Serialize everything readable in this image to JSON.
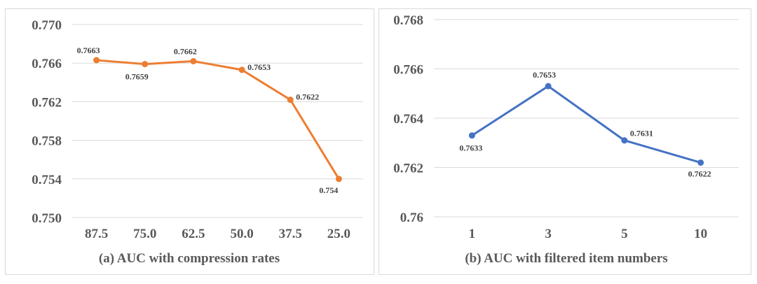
{
  "chart_data": [
    {
      "type": "line",
      "title": "(a) AUC with compression rates",
      "xlabel": "",
      "ylabel": "",
      "categories": [
        "87.5",
        "75.0",
        "62.5",
        "50.0",
        "37.5",
        "25.0"
      ],
      "series": [
        {
          "values": [
            0.7663,
            0.7659,
            0.7662,
            0.7653,
            0.7622,
            0.754
          ],
          "labels": [
            "0.7663",
            "0.7659",
            "0.7662",
            "0.7653",
            "0.7622",
            "0.754"
          ]
        }
      ],
      "yticks": [
        "0.750",
        "0.754",
        "0.758",
        "0.762",
        "0.766",
        "0.770"
      ],
      "ylim": [
        0.75,
        0.77
      ],
      "grid": true,
      "color": "#ED7D31"
    },
    {
      "type": "line",
      "title": "(b) AUC with filtered item numbers",
      "xlabel": "",
      "ylabel": "",
      "categories": [
        "1",
        "3",
        "5",
        "10"
      ],
      "series": [
        {
          "values": [
            0.7633,
            0.7653,
            0.7631,
            0.7622
          ],
          "labels": [
            "0.7633",
            "0.7653",
            "0.7631",
            "0.7622"
          ]
        }
      ],
      "yticks": [
        "0.76",
        "0.762",
        "0.764",
        "0.766",
        "0.768"
      ],
      "ylim": [
        0.76,
        0.768
      ],
      "grid": true,
      "color": "#4472C4"
    }
  ]
}
